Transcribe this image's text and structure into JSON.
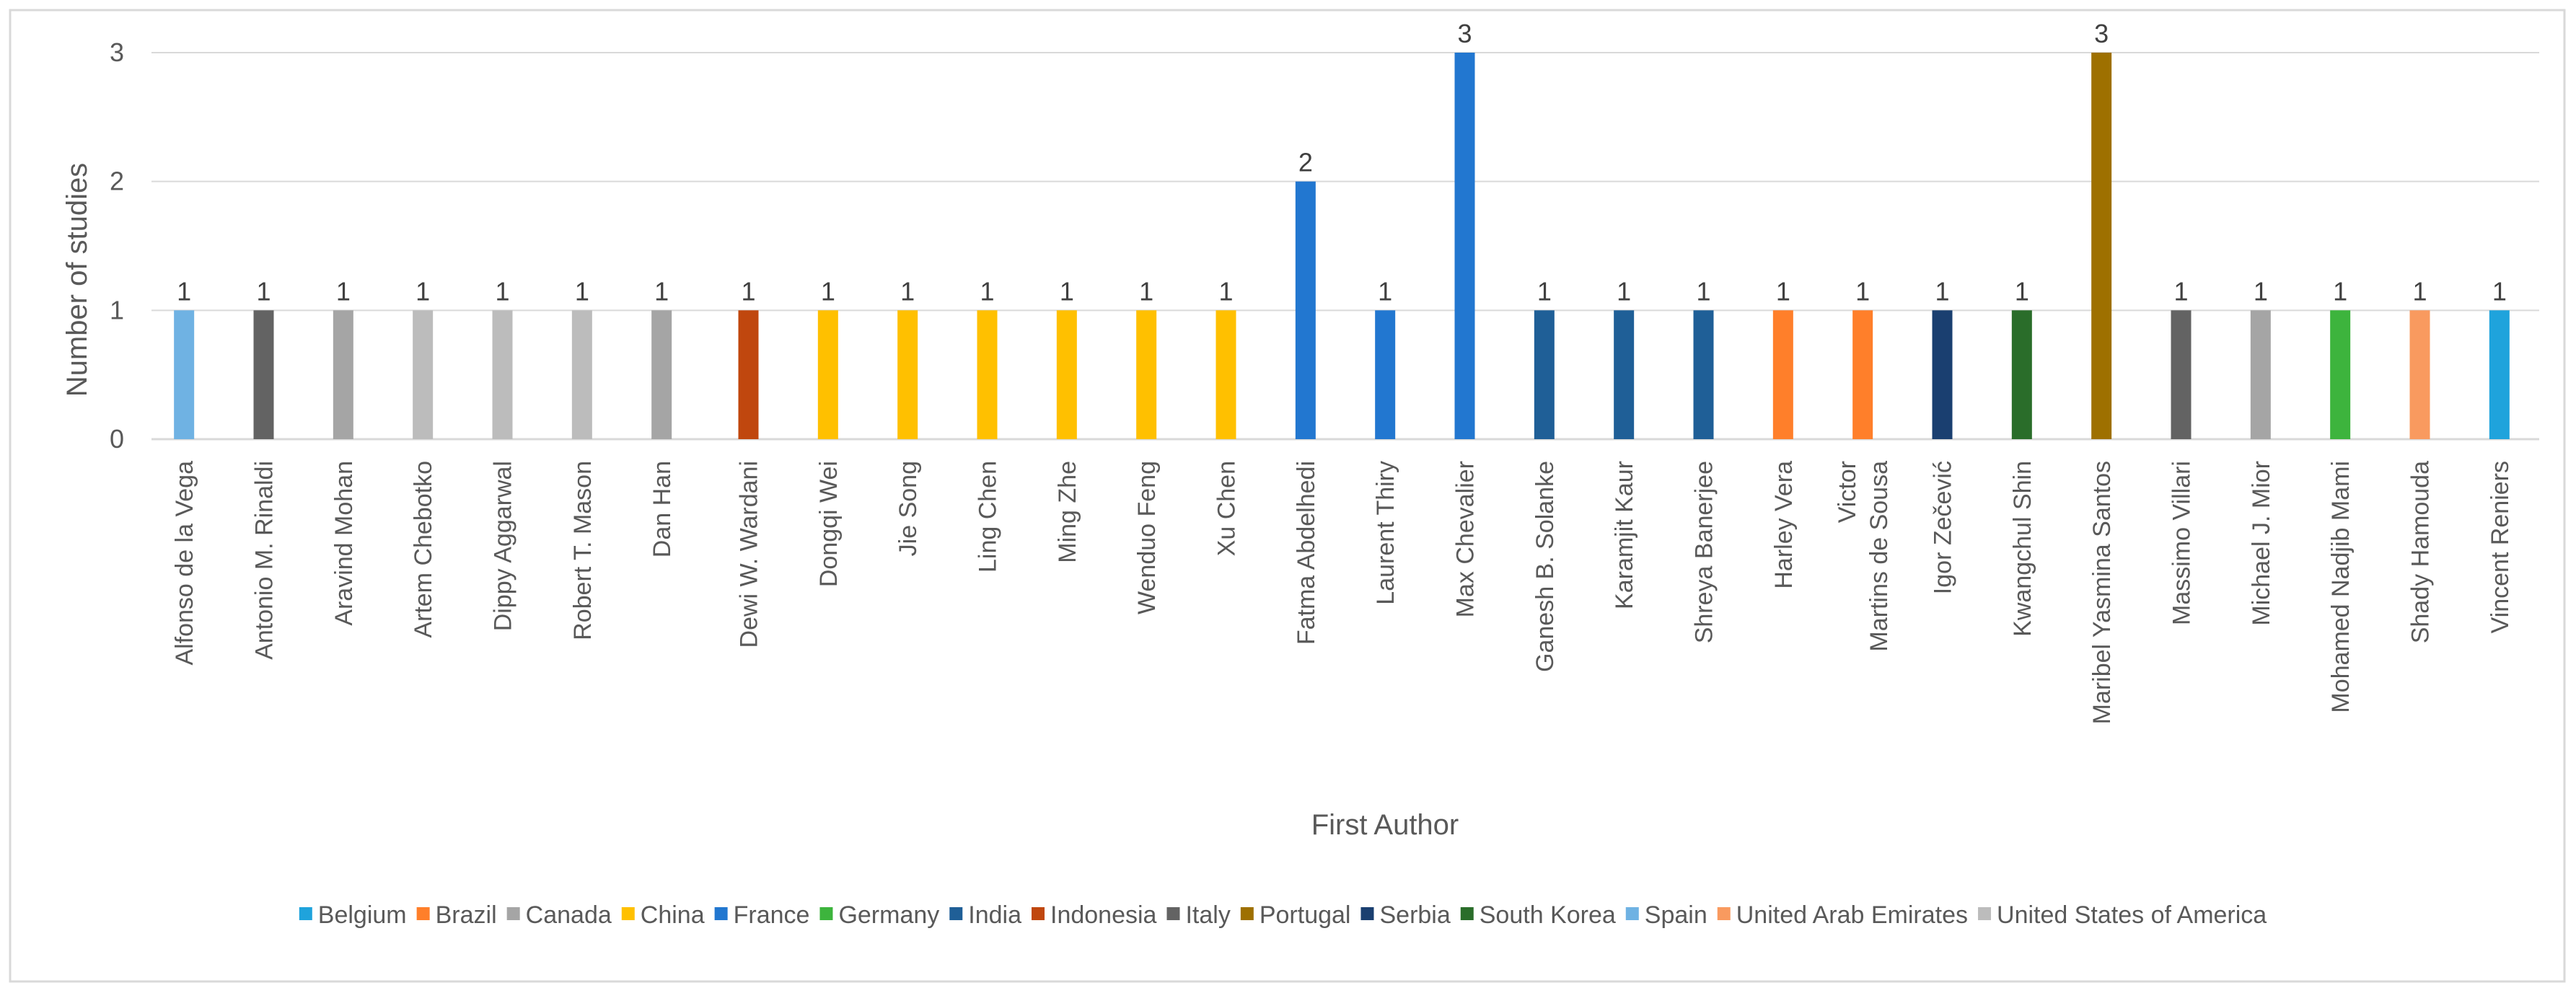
{
  "chart_data": {
    "type": "bar",
    "title": "",
    "xlabel": "First Author",
    "ylabel": "Number of studies",
    "ylim": [
      0,
      3
    ],
    "yticks": [
      "0",
      "1",
      "2",
      "3"
    ],
    "grid": "horizontal",
    "legend_position": "bottom",
    "categories": [
      {
        "label": "Alfonso de la Vega",
        "value": 1,
        "country": "Spain"
      },
      {
        "label": "Antonio M. Rinaldi",
        "value": 1,
        "country": "Italy"
      },
      {
        "label": "Aravind Mohan",
        "value": 1,
        "country": "Canada"
      },
      {
        "label": "Artem Chebotko",
        "value": 1,
        "country": "United States of America"
      },
      {
        "label": "Dippy Aggarwal",
        "value": 1,
        "country": "United States of America"
      },
      {
        "label": "Robert T. Mason",
        "value": 1,
        "country": "United States of America"
      },
      {
        "label": "Dan Han",
        "value": 1,
        "country": "Canada"
      },
      {
        "label": "Dewi W. Wardani",
        "value": 1,
        "country": "Indonesia"
      },
      {
        "label": "Dongqi Wei",
        "value": 1,
        "country": "China"
      },
      {
        "label": "Jie Song",
        "value": 1,
        "country": "China"
      },
      {
        "label": "Ling Chen",
        "value": 1,
        "country": "China"
      },
      {
        "label": "Ming Zhe",
        "value": 1,
        "country": "China"
      },
      {
        "label": "Wenduo Feng",
        "value": 1,
        "country": "China"
      },
      {
        "label": "Xu Chen",
        "value": 1,
        "country": "China"
      },
      {
        "label": "Fatma Abdelhedi",
        "value": 2,
        "country": "France"
      },
      {
        "label": "Laurent Thiry",
        "value": 1,
        "country": "France"
      },
      {
        "label": "Max Chevalier",
        "value": 3,
        "country": "France"
      },
      {
        "label": "Ganesh B. Solanke",
        "value": 1,
        "country": "India"
      },
      {
        "label": "Karamjit Kaur",
        "value": 1,
        "country": "India"
      },
      {
        "label": "Shreya Banerjee",
        "value": 1,
        "country": "India"
      },
      {
        "label": "Harley Vera",
        "value": 1,
        "country": "Brazil"
      },
      {
        "label": "Victor Martins de Sousa",
        "lines": [
          "Victor",
          "Martins de Sousa"
        ],
        "value": 1,
        "country": "Brazil"
      },
      {
        "label": "Igor Zečević",
        "value": 1,
        "country": "Serbia"
      },
      {
        "label": "Kwangchul Shin",
        "value": 1,
        "country": "South Korea"
      },
      {
        "label": "Maribel Yasmina Santos",
        "value": 3,
        "country": "Portugal"
      },
      {
        "label": "Massimo Villari",
        "value": 1,
        "country": "Italy"
      },
      {
        "label": "Michael J. Mior",
        "value": 1,
        "country": "Canada"
      },
      {
        "label": "Mohamed Nadjib Mami",
        "value": 1,
        "country": "Germany"
      },
      {
        "label": "Shady Hamouda",
        "value": 1,
        "country": "United Arab Emirates"
      },
      {
        "label": "Vincent Reniers",
        "value": 1,
        "country": "Belgium"
      }
    ],
    "legend": [
      {
        "name": "Belgium",
        "color": "#1fa3dc"
      },
      {
        "name": "Brazil",
        "color": "#ff7f2a"
      },
      {
        "name": "Canada",
        "color": "#a5a5a5"
      },
      {
        "name": "China",
        "color": "#ffc000"
      },
      {
        "name": "France",
        "color": "#2277d0"
      },
      {
        "name": "Germany",
        "color": "#3db43d"
      },
      {
        "name": "India",
        "color": "#1f5f97"
      },
      {
        "name": "Indonesia",
        "color": "#c0470e"
      },
      {
        "name": "Italy",
        "color": "#636363"
      },
      {
        "name": "Portugal",
        "color": "#9e7000"
      },
      {
        "name": "Serbia",
        "color": "#1a3f70"
      },
      {
        "name": "South Korea",
        "color": "#2a6d2a"
      },
      {
        "name": "Spain",
        "color": "#6fb2e3"
      },
      {
        "name": "United Arab Emirates",
        "color": "#f99a5f"
      },
      {
        "name": "United States of America",
        "color": "#bcbcbc"
      }
    ]
  }
}
